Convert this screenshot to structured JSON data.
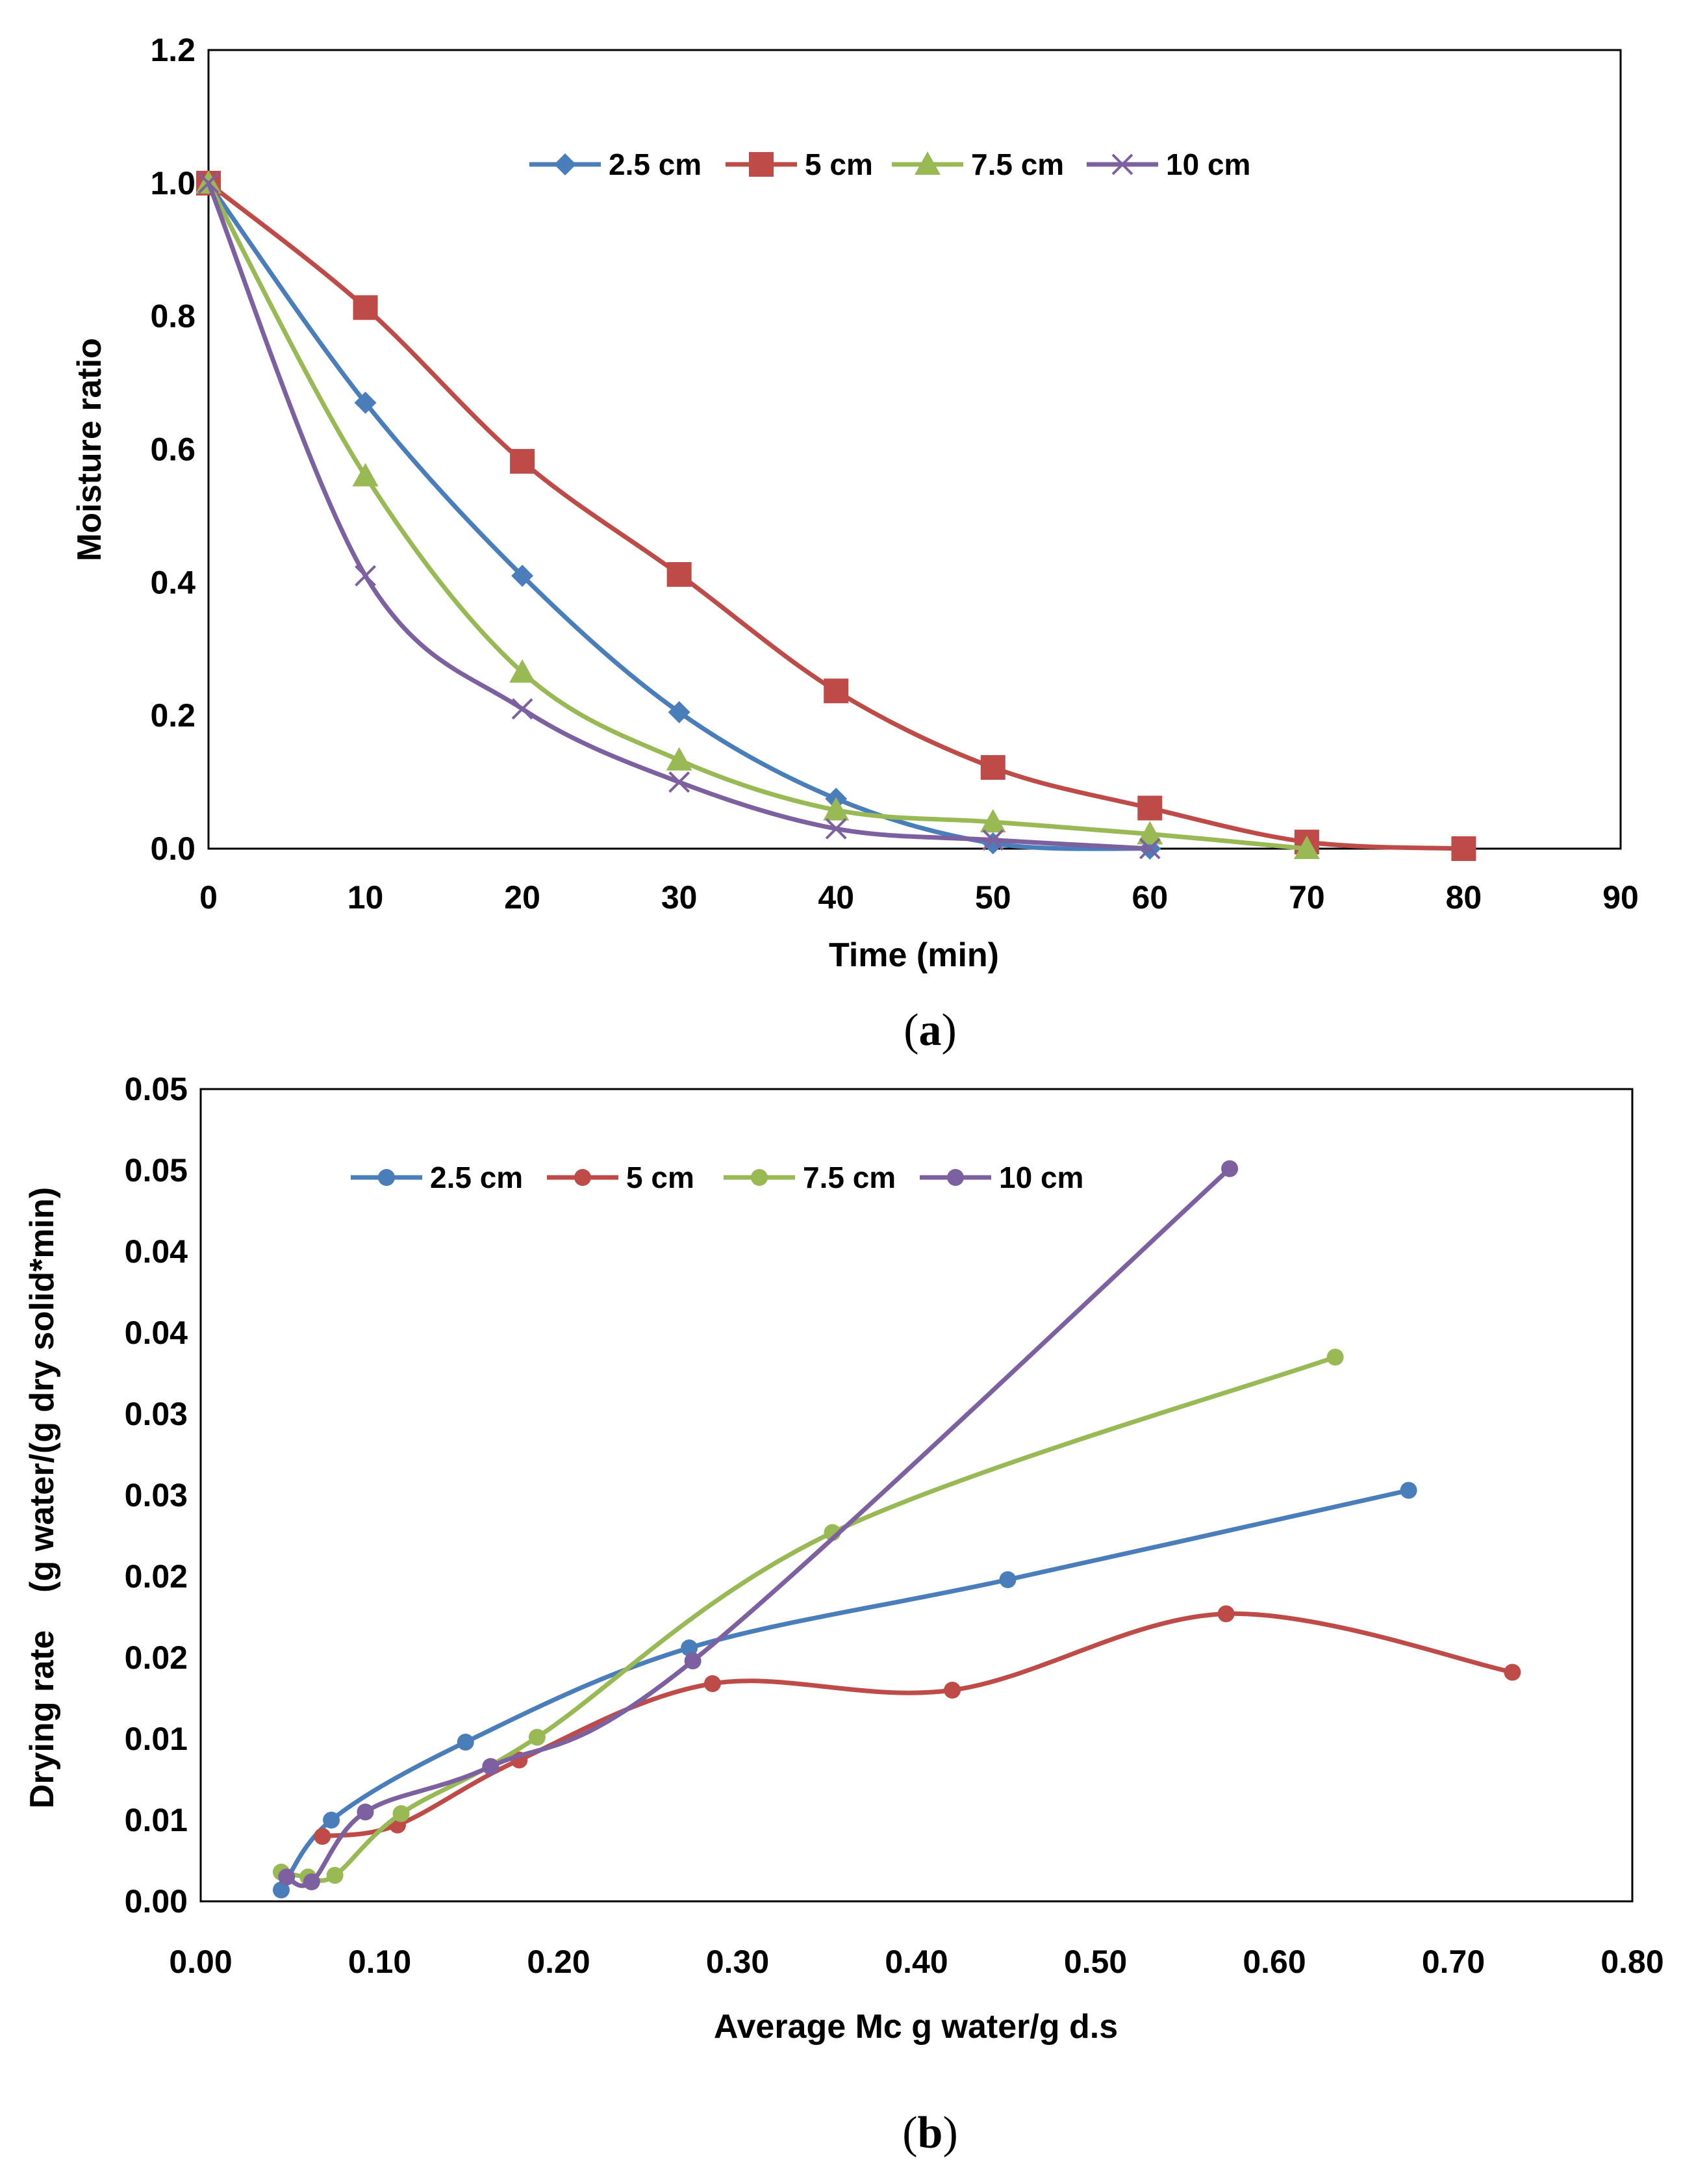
{
  "chart_data": [
    {
      "type": "line",
      "caption": {
        "open": "(",
        "letter": "a",
        "close": ")"
      },
      "xlabel": "Time (min)",
      "ylabel": "Moisture ratio",
      "xlim": [
        0,
        90
      ],
      "ylim": [
        0,
        1.2
      ],
      "xticks": [
        0,
        10,
        20,
        30,
        40,
        50,
        60,
        70,
        80,
        90
      ],
      "xtick_labels": [
        "0",
        "10",
        "20",
        "30",
        "40",
        "50",
        "60",
        "70",
        "80",
        "90"
      ],
      "yticks": [
        0,
        0.2,
        0.4,
        0.6,
        0.8,
        1.0,
        1.2
      ],
      "ytick_labels": [
        "0.0",
        "0.2",
        "0.4",
        "0.6",
        "0.8",
        "1.0",
        "1.2"
      ],
      "legend_position": "top-center",
      "series": [
        {
          "name": "2.5 cm",
          "color": "#4A7EBB",
          "marker": "diamond",
          "x": [
            0,
            10,
            20,
            30,
            40,
            50,
            60
          ],
          "y": [
            1.0,
            0.67,
            0.41,
            0.205,
            0.075,
            0.008,
            0.0
          ]
        },
        {
          "name": "5 cm",
          "color": "#BE4B48",
          "marker": "square",
          "x": [
            0,
            10,
            20,
            30,
            40,
            50,
            60,
            70,
            80
          ],
          "y": [
            1.0,
            0.813,
            0.582,
            0.412,
            0.237,
            0.122,
            0.061,
            0.01,
            0.0
          ]
        },
        {
          "name": "7.5 cm",
          "color": "#98B954",
          "marker": "triangle",
          "x": [
            0,
            10,
            20,
            30,
            40,
            50,
            60,
            70
          ],
          "y": [
            1.0,
            0.56,
            0.265,
            0.133,
            0.058,
            0.04,
            0.022,
            0.0
          ]
        },
        {
          "name": "10 cm",
          "color": "#7D60A0",
          "marker": "x",
          "x": [
            0,
            10,
            20,
            30,
            40,
            50,
            60
          ],
          "y": [
            1.0,
            0.41,
            0.21,
            0.1,
            0.03,
            0.013,
            0.0
          ]
        }
      ]
    },
    {
      "type": "line",
      "caption": {
        "open": "(",
        "letter": "b",
        "close": ")"
      },
      "xlabel": "Average Mc g water/g d.s",
      "ylabel": "Drying rate    (g water/(g dry solid*min)",
      "xlim": [
        0,
        0.8
      ],
      "ylim": [
        0,
        0.05
      ],
      "xticks": [
        0,
        0.1,
        0.2,
        0.3,
        0.4,
        0.5,
        0.6,
        0.7,
        0.8
      ],
      "xtick_labels": [
        "0.00",
        "0.10",
        "0.20",
        "0.30",
        "0.40",
        "0.50",
        "0.60",
        "0.70",
        "0.80"
      ],
      "yticks": [
        0,
        0.005,
        0.01,
        0.015,
        0.02,
        0.025,
        0.03,
        0.035,
        0.04,
        0.045,
        0.05
      ],
      "ytick_labels": [
        "0.00",
        "0.01",
        "0.01",
        "0.02",
        "0.02",
        "0.03",
        "0.03",
        "0.04",
        "0.04",
        "0.05",
        "0.05"
      ],
      "legend_position": "top-left",
      "series": [
        {
          "name": "2.5 cm",
          "color": "#4A7EBB",
          "marker": "circle",
          "x": [
            0.045,
            0.073,
            0.148,
            0.273,
            0.451,
            0.675
          ],
          "y": [
            0.0007,
            0.005,
            0.0098,
            0.0156,
            0.0198,
            0.0253
          ]
        },
        {
          "name": "5 cm",
          "color": "#BE4B48",
          "marker": "circle",
          "x": [
            0.068,
            0.11,
            0.178,
            0.286,
            0.42,
            0.573,
            0.733
          ],
          "y": [
            0.004,
            0.0047,
            0.0087,
            0.0134,
            0.013,
            0.0177,
            0.0141
          ]
        },
        {
          "name": "7.5 cm",
          "color": "#98B954",
          "marker": "circle",
          "x": [
            0.045,
            0.06,
            0.075,
            0.112,
            0.188,
            0.353,
            0.634
          ],
          "y": [
            0.0018,
            0.0015,
            0.0016,
            0.0054,
            0.0101,
            0.0227,
            0.0335
          ]
        },
        {
          "name": "10 cm",
          "color": "#7D60A0",
          "marker": "circle",
          "x": [
            0.048,
            0.062,
            0.092,
            0.162,
            0.275,
            0.575
          ],
          "y": [
            0.0015,
            0.0012,
            0.0055,
            0.0083,
            0.0148,
            0.0451
          ]
        }
      ]
    }
  ]
}
